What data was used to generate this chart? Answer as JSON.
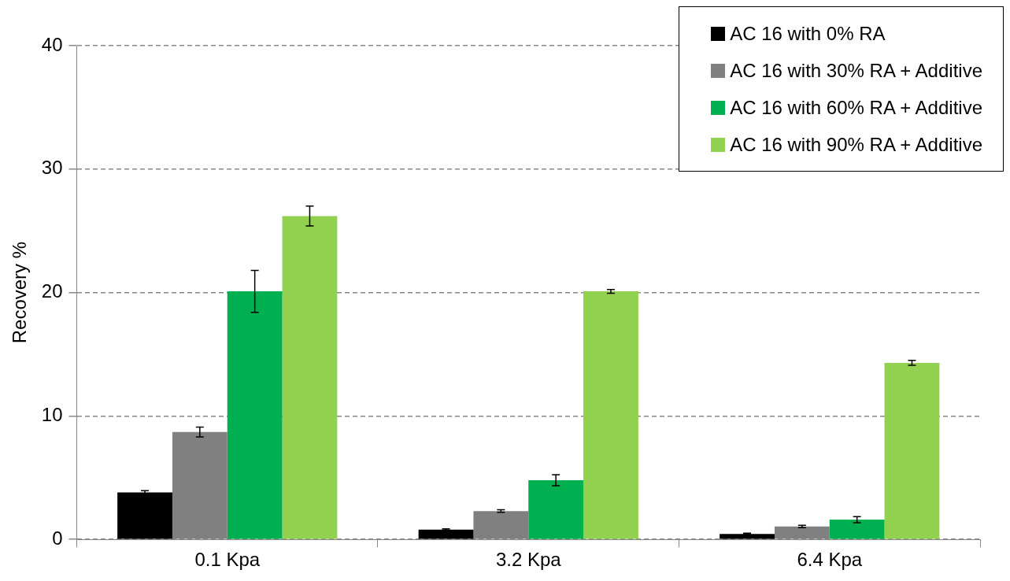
{
  "chart_data": {
    "type": "bar",
    "ylabel": "Recovery %",
    "categories": [
      "0.1 Kpa",
      "3.2 Kpa",
      "6.4 Kpa"
    ],
    "series": [
      {
        "name": "AC 16 with 0% RA",
        "color": "#000000",
        "values": [
          3.8,
          0.8,
          0.45
        ],
        "errors": [
          0.15,
          0.05,
          0.05
        ]
      },
      {
        "name": "AC 16 with 30% RA + Additive",
        "color": "#808080",
        "values": [
          8.7,
          2.3,
          1.05
        ],
        "errors": [
          0.4,
          0.1,
          0.1
        ]
      },
      {
        "name": "AC 16 with 60% RA + Additive",
        "color": "#00b050",
        "values": [
          20.1,
          4.8,
          1.6
        ],
        "errors": [
          1.7,
          0.45,
          0.25
        ]
      },
      {
        "name": "AC 16 with 90% RA + Additive",
        "color": "#92d050",
        "values": [
          26.2,
          20.1,
          14.3
        ],
        "errors": [
          0.8,
          0.15,
          0.2
        ]
      }
    ],
    "ylim": [
      0,
      40
    ],
    "yticks": [
      0,
      10,
      20,
      30,
      40
    ],
    "grid": "y",
    "legend": "top right"
  }
}
